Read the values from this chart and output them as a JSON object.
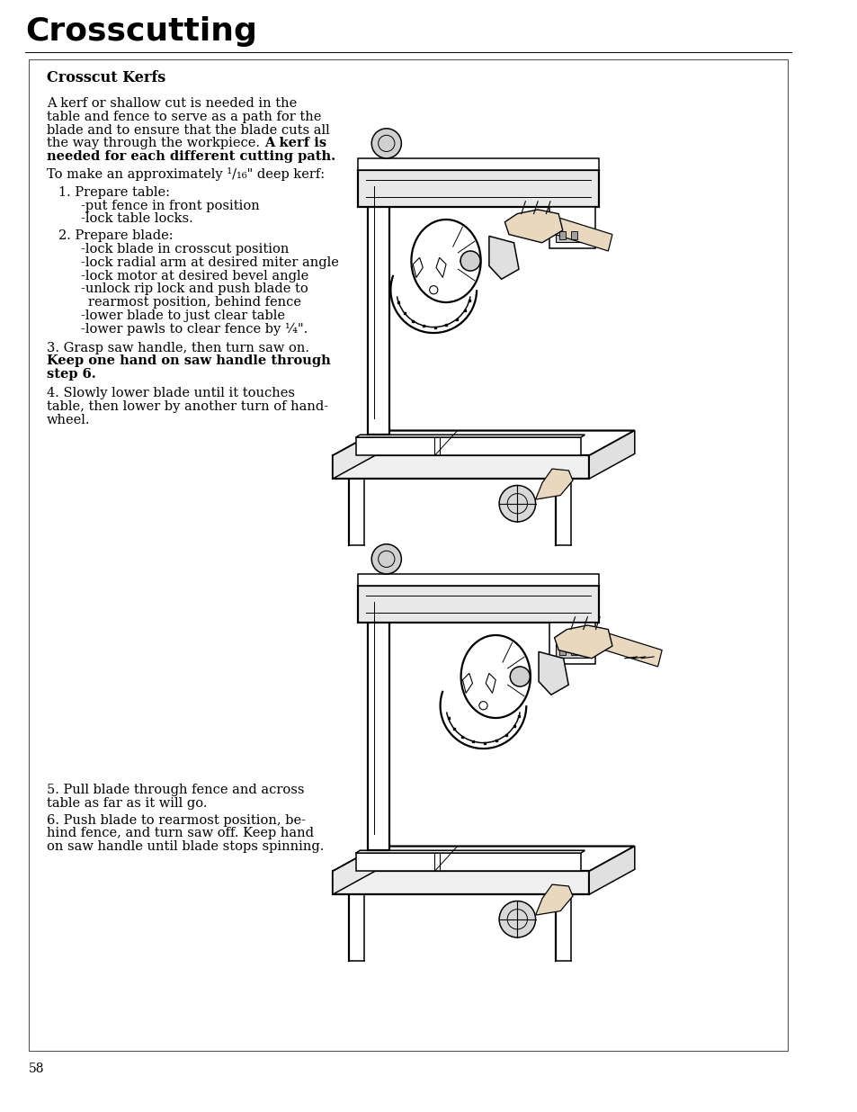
{
  "page_bg": "#ffffff",
  "text_color": "#000000",
  "title": "Crosscutting",
  "section": "Crosscut Kerfs",
  "page_num": "58",
  "body_fs": 10.5,
  "title_fs": 26,
  "section_fs": 11.5,
  "lh": 14.8
}
